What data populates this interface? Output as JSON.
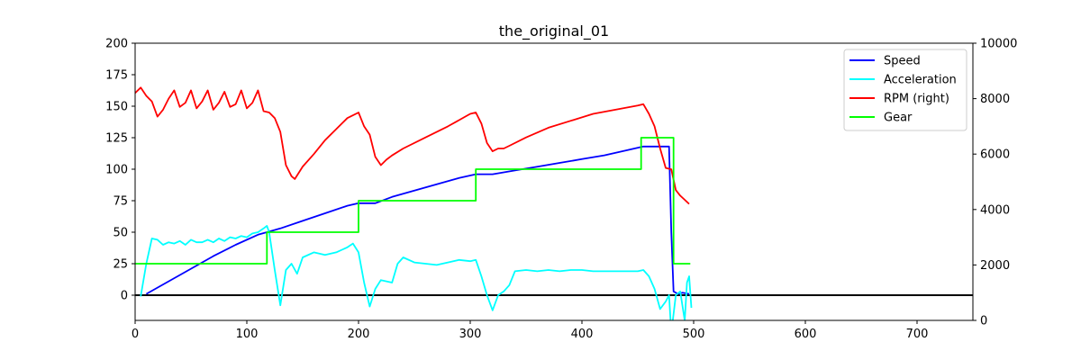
{
  "chart_data": {
    "type": "line",
    "title": "the_original_01",
    "xlabel": "",
    "ylabel": "",
    "y2label": "",
    "xlim": [
      0,
      750
    ],
    "ylim": [
      -20,
      200
    ],
    "y2lim": [
      0,
      10000
    ],
    "x_ticks": [
      0,
      100,
      200,
      300,
      400,
      500,
      600,
      700
    ],
    "y_ticks": [
      0,
      25,
      50,
      75,
      100,
      125,
      150,
      175,
      200
    ],
    "y2_ticks": [
      0,
      2000,
      4000,
      6000,
      8000,
      10000
    ],
    "grid": false,
    "legend_position": "top-right",
    "zero_line": {
      "y": 0,
      "color": "#000000"
    },
    "series": [
      {
        "name": "Speed",
        "color": "#0000ff",
        "axis": "left",
        "x": [
          10,
          30,
          50,
          70,
          90,
          110,
          118,
          130,
          150,
          170,
          190,
          200,
          215,
          230,
          250,
          270,
          290,
          305,
          320,
          340,
          360,
          380,
          400,
          420,
          440,
          455,
          465,
          478,
          480,
          482,
          486,
          490,
          496
        ],
        "y": [
          1,
          11,
          21,
          31,
          40,
          48,
          50,
          53,
          59,
          65,
          71,
          73,
          73,
          78,
          83,
          88,
          93,
          96,
          96,
          99,
          102,
          105,
          108,
          111,
          115,
          118,
          118,
          118,
          50,
          3,
          1,
          2,
          1
        ]
      },
      {
        "name": "Acceleration",
        "color": "#00ffff",
        "axis": "left",
        "x": [
          5,
          10,
          15,
          20,
          25,
          30,
          35,
          40,
          45,
          50,
          55,
          60,
          65,
          70,
          75,
          80,
          85,
          90,
          95,
          100,
          105,
          110,
          115,
          118,
          120,
          125,
          130,
          135,
          140,
          145,
          150,
          160,
          170,
          180,
          190,
          195,
          200,
          205,
          210,
          215,
          220,
          230,
          235,
          240,
          250,
          260,
          270,
          280,
          290,
          300,
          305,
          310,
          315,
          320,
          325,
          330,
          335,
          340,
          350,
          360,
          370,
          380,
          390,
          400,
          410,
          420,
          430,
          440,
          450,
          455,
          460,
          465,
          470,
          475,
          478,
          480,
          484,
          488,
          492,
          494,
          496,
          498
        ],
        "y": [
          -1,
          25,
          45,
          44,
          40,
          42,
          41,
          43,
          40,
          44,
          42,
          42,
          44,
          42,
          45,
          43,
          46,
          45,
          47,
          46,
          49,
          50,
          53,
          55,
          50,
          20,
          -8,
          20,
          25,
          17,
          30,
          34,
          32,
          34,
          38,
          41,
          34,
          10,
          -9,
          5,
          12,
          10,
          25,
          30,
          26,
          25,
          24,
          26,
          28,
          27,
          28,
          15,
          0,
          -12,
          0,
          3,
          8,
          19,
          20,
          19,
          20,
          19,
          20,
          20,
          19,
          19,
          19,
          19,
          19,
          20,
          15,
          5,
          -11,
          -5,
          0,
          -30,
          0,
          3,
          -20,
          10,
          15,
          -10
        ]
      },
      {
        "name": "RPM (right)",
        "color": "#ff0000",
        "axis": "right",
        "x": [
          0,
          5,
          10,
          15,
          20,
          25,
          30,
          35,
          40,
          45,
          50,
          55,
          60,
          65,
          70,
          75,
          80,
          85,
          90,
          95,
          100,
          105,
          110,
          115,
          120,
          125,
          130,
          135,
          140,
          143,
          150,
          160,
          170,
          180,
          190,
          200,
          205,
          210,
          215,
          220,
          225,
          230,
          240,
          260,
          280,
          300,
          305,
          310,
          315,
          320,
          325,
          330,
          335,
          350,
          370,
          390,
          410,
          430,
          450,
          455,
          460,
          465,
          470,
          475,
          480,
          484,
          488,
          492,
          496
        ],
        "y": [
          8200,
          8400,
          8100,
          7900,
          7350,
          7600,
          8000,
          8300,
          7700,
          7850,
          8300,
          7650,
          7900,
          8300,
          7600,
          7850,
          8250,
          7700,
          7800,
          8300,
          7650,
          7850,
          8300,
          7550,
          7500,
          7300,
          6800,
          5600,
          5200,
          5100,
          5550,
          6000,
          6500,
          6900,
          7300,
          7500,
          7000,
          6700,
          5900,
          5600,
          5800,
          5950,
          6200,
          6600,
          7000,
          7450,
          7500,
          7100,
          6400,
          6100,
          6200,
          6200,
          6300,
          6600,
          6950,
          7200,
          7450,
          7600,
          7750,
          7800,
          7450,
          7000,
          6200,
          5500,
          5450,
          4700,
          4500,
          4350,
          4200
        ]
      },
      {
        "name": "Gear",
        "color": "#00ff00",
        "axis": "left",
        "step": true,
        "x": [
          0,
          118,
          118,
          200,
          200,
          305,
          305,
          453,
          453,
          482,
          482,
          497
        ],
        "y": [
          25,
          25,
          50,
          50,
          75,
          75,
          100,
          100,
          125,
          125,
          25,
          25
        ]
      }
    ]
  }
}
